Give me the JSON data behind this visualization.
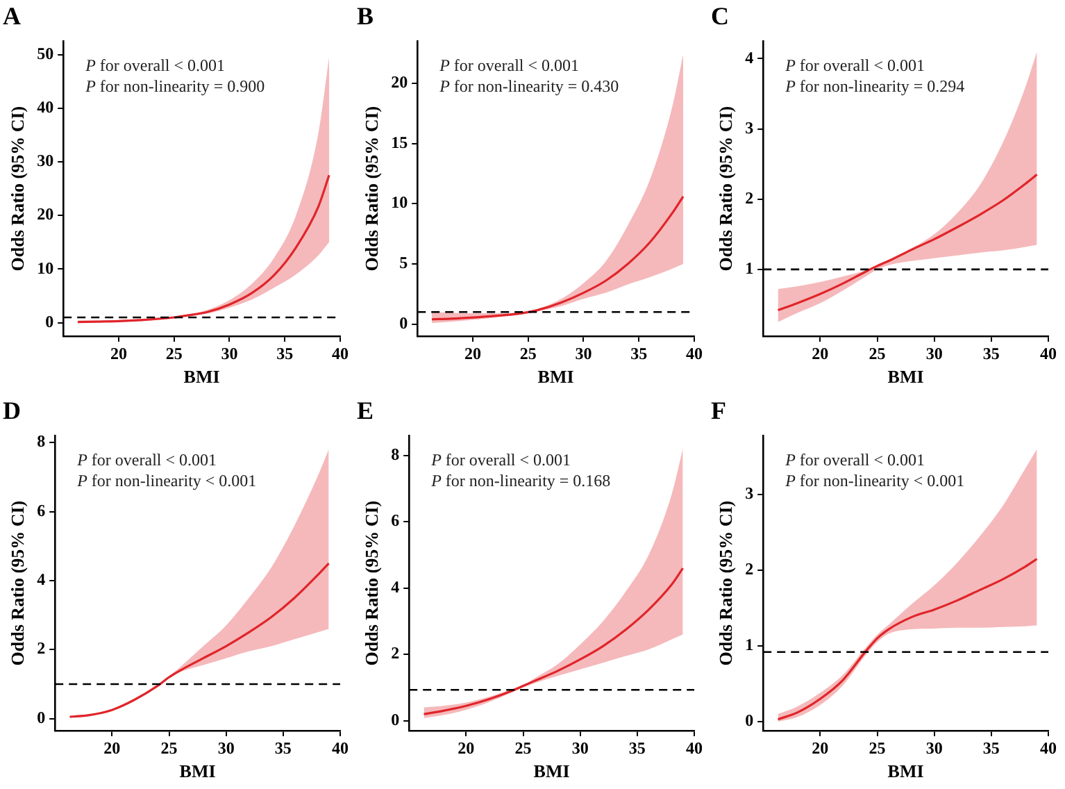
{
  "chart_data": [
    {
      "type": "line",
      "title": "A",
      "xlabel": "BMI",
      "ylabel": "Odds Ratio (95% CI)",
      "annotations": [
        "P for overall < 0.001",
        "P for non-linearity = 0.900"
      ],
      "xlim": [
        15,
        40
      ],
      "xticks": [
        20,
        25,
        30,
        35,
        40
      ],
      "ylim": [
        -2.5,
        52.5
      ],
      "yticks": [
        0,
        10,
        20,
        30,
        40,
        50
      ],
      "grid": false,
      "legend": false,
      "marker": "none",
      "line_style": "solid",
      "ref_lines": [
        {
          "axis": "y",
          "value": 1,
          "color": "#000000",
          "line_style": "dashed"
        }
      ],
      "series": [
        {
          "color": "#e0252a",
          "x": [
            16.3,
            18,
            20,
            22,
            24,
            25,
            26,
            28,
            30,
            32,
            34,
            36,
            38,
            39
          ],
          "values": [
            0.15,
            0.2,
            0.3,
            0.5,
            0.8,
            1.0,
            1.3,
            2.0,
            3.4,
            5.5,
            8.8,
            14,
            21.5,
            27.5
          ],
          "lower": [
            0.05,
            0.1,
            0.15,
            0.3,
            0.6,
            0.9,
            1.15,
            1.7,
            2.8,
            4.3,
            6.5,
            9,
            12.5,
            15
          ],
          "upper": [
            0.4,
            0.4,
            0.5,
            0.7,
            1.0,
            1.1,
            1.45,
            2.4,
            4.2,
            7.2,
            12,
            20,
            35,
            49.5
          ]
        }
      ]
    },
    {
      "type": "line",
      "title": "B",
      "xlabel": "BMI",
      "ylabel": "Odds Ratio (95% CI)",
      "annotations": [
        "P for overall < 0.001",
        "P for non-linearity = 0.430"
      ],
      "xlim": [
        15,
        40
      ],
      "xticks": [
        20,
        25,
        30,
        35,
        40
      ],
      "ylim": [
        -1,
        23.5
      ],
      "yticks": [
        0,
        5,
        10,
        15,
        20
      ],
      "grid": false,
      "legend": false,
      "marker": "none",
      "line_style": "solid",
      "ref_lines": [
        {
          "axis": "y",
          "value": 1,
          "color": "#000000",
          "line_style": "dashed"
        }
      ],
      "series": [
        {
          "color": "#e0252a",
          "x": [
            16.3,
            18,
            20,
            22,
            24,
            25,
            26,
            28,
            30,
            32,
            34,
            36,
            38,
            39
          ],
          "values": [
            0.4,
            0.45,
            0.55,
            0.68,
            0.85,
            1.0,
            1.2,
            1.8,
            2.6,
            3.6,
            5.0,
            6.8,
            9.2,
            10.6
          ],
          "lower": [
            0.1,
            0.2,
            0.35,
            0.55,
            0.75,
            0.9,
            1.1,
            1.5,
            2.1,
            2.6,
            3.3,
            3.9,
            4.6,
            5
          ],
          "upper": [
            1.0,
            0.95,
            0.9,
            0.9,
            0.95,
            1.05,
            1.3,
            2.1,
            3.4,
            5.2,
            8.2,
            12,
            18,
            22.4
          ]
        }
      ]
    },
    {
      "type": "line",
      "title": "C",
      "xlabel": "BMI",
      "ylabel": "Odds Ratio (95% CI)",
      "annotations": [
        "P for overall < 0.001",
        "P for non-linearity = 0.294"
      ],
      "xlim": [
        15,
        40
      ],
      "xticks": [
        20,
        25,
        30,
        35,
        40
      ],
      "ylim": [
        0.05,
        4.25
      ],
      "yticks": [
        1,
        2,
        3,
        4
      ],
      "grid": false,
      "legend": false,
      "marker": "none",
      "line_style": "solid",
      "ref_lines": [
        {
          "axis": "y",
          "value": 1,
          "color": "#000000",
          "line_style": "dashed"
        }
      ],
      "series": [
        {
          "color": "#e0252a",
          "x": [
            16.3,
            18,
            20,
            22,
            24,
            25,
            26,
            28,
            30,
            32,
            34,
            36,
            38,
            39
          ],
          "values": [
            0.42,
            0.52,
            0.65,
            0.8,
            0.97,
            1.05,
            1.12,
            1.28,
            1.43,
            1.6,
            1.78,
            1.98,
            2.22,
            2.35
          ],
          "lower": [
            0.25,
            0.38,
            0.52,
            0.7,
            0.9,
            1.0,
            1.06,
            1.12,
            1.16,
            1.2,
            1.24,
            1.27,
            1.32,
            1.35
          ],
          "upper": [
            0.72,
            0.76,
            0.82,
            0.9,
            0.99,
            1.06,
            1.14,
            1.3,
            1.5,
            1.8,
            2.2,
            2.8,
            3.6,
            4.1
          ]
        }
      ]
    },
    {
      "type": "line",
      "title": "D",
      "xlabel": "BMI",
      "ylabel": "Odds Ratio (95% CI)",
      "annotations": [
        "P for overall < 0.001",
        "P for non-linearity < 0.001"
      ],
      "xlim": [
        15,
        40
      ],
      "xticks": [
        20,
        25,
        30,
        35,
        40
      ],
      "ylim": [
        -0.35,
        8.2
      ],
      "yticks": [
        0,
        2,
        4,
        6,
        8
      ],
      "grid": false,
      "legend": false,
      "marker": "none",
      "line_style": "solid",
      "ref_lines": [
        {
          "axis": "y",
          "value": 1,
          "color": "#000000",
          "line_style": "dashed"
        }
      ],
      "series": [
        {
          "color": "#e0252a",
          "x": [
            16.3,
            18,
            20,
            22,
            24,
            25,
            26,
            28,
            30,
            32,
            34,
            36,
            38,
            39
          ],
          "values": [
            0.05,
            0.1,
            0.25,
            0.55,
            0.95,
            1.2,
            1.4,
            1.75,
            2.1,
            2.5,
            2.95,
            3.5,
            4.15,
            4.5
          ],
          "lower": [
            0.03,
            0.08,
            0.22,
            0.52,
            0.92,
            1.17,
            1.35,
            1.55,
            1.75,
            1.95,
            2.1,
            2.3,
            2.5,
            2.6
          ],
          "upper": [
            0.07,
            0.12,
            0.28,
            0.58,
            0.98,
            1.23,
            1.5,
            2.1,
            2.7,
            3.5,
            4.4,
            5.6,
            7.0,
            7.8
          ]
        }
      ]
    },
    {
      "type": "line",
      "title": "E",
      "xlabel": "BMI",
      "ylabel": "Odds Ratio (95% CI)",
      "annotations": [
        "P for overall < 0.001",
        "P for non-linearity = 0.168"
      ],
      "xlim": [
        15,
        40
      ],
      "xticks": [
        20,
        25,
        30,
        35,
        40
      ],
      "ylim": [
        -0.3,
        8.6
      ],
      "yticks": [
        0,
        2,
        4,
        6,
        8
      ],
      "grid": false,
      "legend": false,
      "marker": "none",
      "line_style": "solid",
      "ref_lines": [
        {
          "axis": "y",
          "value": 0.93,
          "color": "#000000",
          "line_style": "dashed"
        }
      ],
      "series": [
        {
          "color": "#e0252a",
          "x": [
            16.3,
            18,
            20,
            22,
            24,
            25,
            26,
            28,
            30,
            32,
            34,
            36,
            38,
            39
          ],
          "values": [
            0.2,
            0.3,
            0.45,
            0.65,
            0.9,
            1.05,
            1.2,
            1.5,
            1.85,
            2.25,
            2.75,
            3.35,
            4.1,
            4.6
          ],
          "lower": [
            0.08,
            0.17,
            0.33,
            0.56,
            0.85,
            1.0,
            1.13,
            1.35,
            1.55,
            1.75,
            1.95,
            2.15,
            2.45,
            2.6
          ],
          "upper": [
            0.4,
            0.45,
            0.55,
            0.72,
            0.95,
            1.08,
            1.28,
            1.7,
            2.3,
            3.0,
            3.9,
            5.0,
            6.8,
            8.2
          ]
        }
      ]
    },
    {
      "type": "line",
      "title": "F",
      "xlabel": "BMI",
      "ylabel": "Odds Ratio (95% CI)",
      "annotations": [
        "P for overall < 0.001",
        "P for non-linearity < 0.001"
      ],
      "xlim": [
        15,
        40
      ],
      "xticks": [
        20,
        25,
        30,
        35,
        40
      ],
      "ylim": [
        -0.12,
        3.78
      ],
      "yticks": [
        0,
        1,
        2,
        3
      ],
      "grid": false,
      "legend": false,
      "marker": "none",
      "line_style": "solid",
      "ref_lines": [
        {
          "axis": "y",
          "value": 0.92,
          "color": "#000000",
          "line_style": "dashed"
        }
      ],
      "series": [
        {
          "color": "#e0252a",
          "x": [
            16.3,
            18,
            20,
            22,
            24,
            25,
            26,
            28,
            30,
            32,
            34,
            36,
            38,
            39
          ],
          "values": [
            0.03,
            0.12,
            0.3,
            0.55,
            0.93,
            1.1,
            1.22,
            1.38,
            1.48,
            1.6,
            1.74,
            1.88,
            2.05,
            2.15
          ],
          "lower": [
            0.0,
            0.06,
            0.22,
            0.48,
            0.88,
            1.05,
            1.16,
            1.22,
            1.23,
            1.24,
            1.24,
            1.25,
            1.26,
            1.27
          ],
          "upper": [
            0.1,
            0.2,
            0.38,
            0.62,
            0.98,
            1.15,
            1.28,
            1.55,
            1.8,
            2.1,
            2.45,
            2.85,
            3.35,
            3.6
          ]
        }
      ]
    }
  ]
}
